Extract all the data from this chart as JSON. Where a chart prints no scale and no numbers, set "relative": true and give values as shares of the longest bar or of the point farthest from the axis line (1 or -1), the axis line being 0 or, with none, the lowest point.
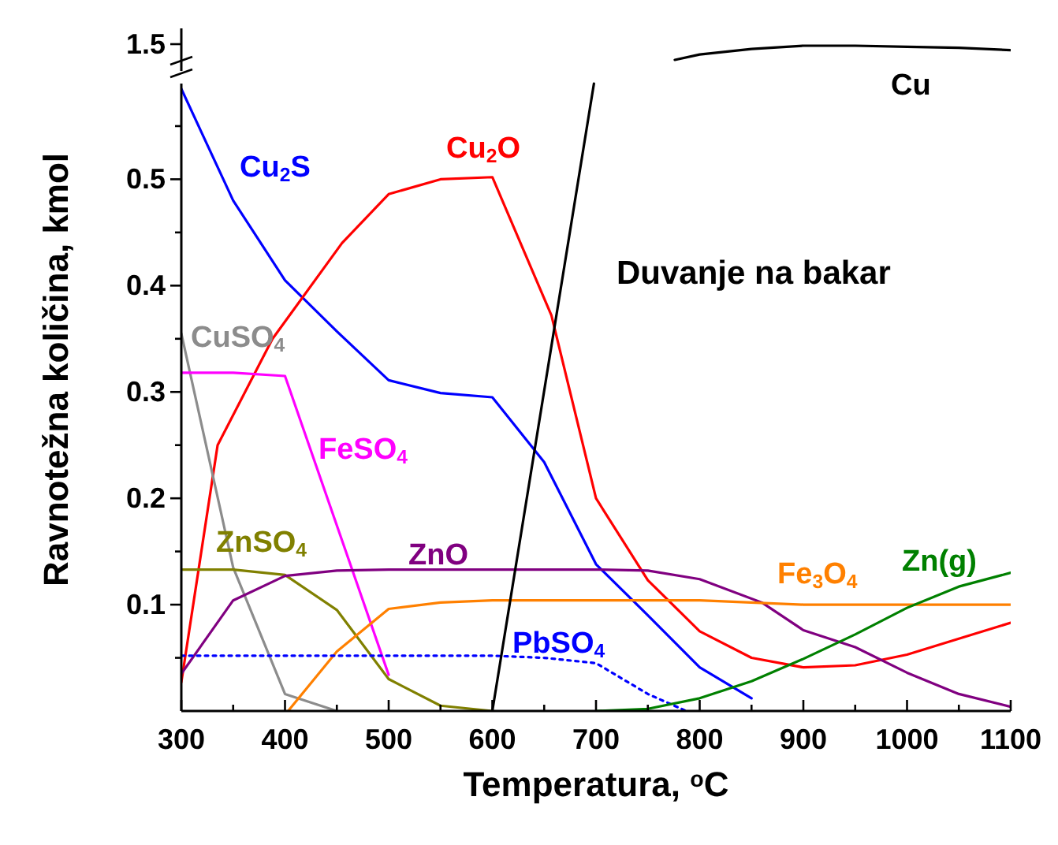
{
  "chart_data": [
    {
      "type": "line",
      "xlim": [
        300,
        1100
      ],
      "relative": true,
      "annotations": [
        "1.5"
      ],
      "series": [
        {
          "name": "Cu",
          "color": "#000000",
          "x": [
            776,
            800,
            850,
            900,
            950,
            1000,
            1050,
            1100
          ],
          "values": [
            0,
            0.38,
            0.77,
            1,
            1,
            0.92,
            0.85,
            0.69
          ]
        }
      ]
    },
    {
      "type": "line",
      "xlabel": "Temperatura, $^{o}$C",
      "ylabel": "Ravnotežna količina, kmol",
      "xlim": [
        300,
        1100
      ],
      "xticks": [
        300,
        {
          "value": 350,
          "label": null
        },
        400,
        {
          "value": 450,
          "label": null
        },
        500,
        {
          "value": 550,
          "label": null
        },
        600,
        {
          "value": 650,
          "label": null
        },
        700,
        {
          "value": 750,
          "label": null
        },
        800,
        {
          "value": 850,
          "label": null
        },
        900,
        {
          "value": 950,
          "label": null
        },
        1000,
        {
          "value": 1050,
          "label": null
        },
        1100
      ],
      "ylim": [
        0,
        0.59
      ],
      "yticks": [
        {
          "value": 0.05,
          "label": null
        },
        0.1,
        {
          "value": 0.15,
          "label": null
        },
        0.2,
        {
          "value": 0.25,
          "label": null
        },
        0.3,
        {
          "value": 0.35,
          "label": null
        },
        0.4,
        {
          "value": 0.45,
          "label": null
        },
        0.5,
        {
          "value": 0.55,
          "label": null
        }
      ],
      "annotations": [
        "Duvanje na bakar"
      ],
      "series": [
        {
          "name": "Cu$_{2}$S",
          "color": "#0000ff",
          "x": [
            300,
            350,
            400,
            450,
            500,
            550,
            600,
            650,
            700,
            750,
            800,
            850
          ],
          "values": [
            0.585,
            0.48,
            0.405,
            0.357,
            0.311,
            0.299,
            0.295,
            0.234,
            0.138,
            0.09,
            0.041,
            0.012
          ]
        },
        {
          "name": "Cu$_{2}$O",
          "color": "#ff0000",
          "x": [
            300,
            335,
            388,
            455,
            500,
            550,
            600,
            657,
            700,
            750,
            800,
            850,
            900,
            950,
            1000,
            1050,
            1100
          ],
          "values": [
            0.027,
            0.25,
            0.35,
            0.44,
            0.486,
            0.5,
            0.502,
            0.372,
            0.2,
            0.123,
            0.075,
            0.05,
            0.041,
            0.043,
            0.053,
            0.068,
            0.083
          ]
        },
        {
          "name": "CuSO$_{4}$",
          "color": "#8c8c8c",
          "x": [
            300,
            350,
            400,
            450
          ],
          "values": [
            0.355,
            0.135,
            0.016,
            0
          ]
        },
        {
          "name": "FeSO$_{4}$",
          "color": "#ff00ff",
          "x": [
            300,
            350,
            400,
            500
          ],
          "values": [
            0.318,
            0.318,
            0.315,
            0.034
          ]
        },
        {
          "name": "ZnSO$_{4}$",
          "color": "#808000",
          "x": [
            300,
            350,
            400,
            450,
            500,
            550,
            600
          ],
          "values": [
            0.133,
            0.133,
            0.128,
            0.095,
            0.03,
            0.005,
            0
          ]
        },
        {
          "name": "ZnO",
          "color": "#800080",
          "x": [
            300,
            350,
            400,
            450,
            500,
            600,
            700,
            750,
            800,
            860,
            900,
            950,
            1000,
            1050,
            1100
          ],
          "values": [
            0.035,
            0.104,
            0.127,
            0.132,
            0.133,
            0.133,
            0.133,
            0.132,
            0.124,
            0.102,
            0.076,
            0.06,
            0.036,
            0.016,
            0.004
          ]
        },
        {
          "name": "Fe$_{3}$O$_{4}$",
          "color": "#ff8000",
          "x": [
            403,
            450,
            500,
            550,
            600,
            700,
            800,
            900,
            1000,
            1100
          ],
          "values": [
            0,
            0.056,
            0.096,
            0.102,
            0.104,
            0.104,
            0.104,
            0.1,
            0.1,
            0.1
          ]
        },
        {
          "name": "PbSO$_{4}$",
          "color": "#0000ff",
          "line_style": "dotted",
          "x": [
            300,
            400,
            500,
            600,
            650,
            700,
            750,
            787
          ],
          "values": [
            0.052,
            0.052,
            0.052,
            0.052,
            0.05,
            0.045,
            0.016,
            0
          ]
        },
        {
          "name": "Zn(g)",
          "color": "#008000",
          "x": [
            700,
            750,
            800,
            850,
            900,
            950,
            1000,
            1050,
            1100
          ],
          "values": [
            0,
            0.002,
            0.012,
            0.028,
            0.049,
            0.072,
            0.097,
            0.117,
            0.13
          ]
        },
        {
          "color": "#000000",
          "x": [
            600,
            698
          ],
          "values": [
            0,
            0.59
          ]
        }
      ]
    }
  ]
}
